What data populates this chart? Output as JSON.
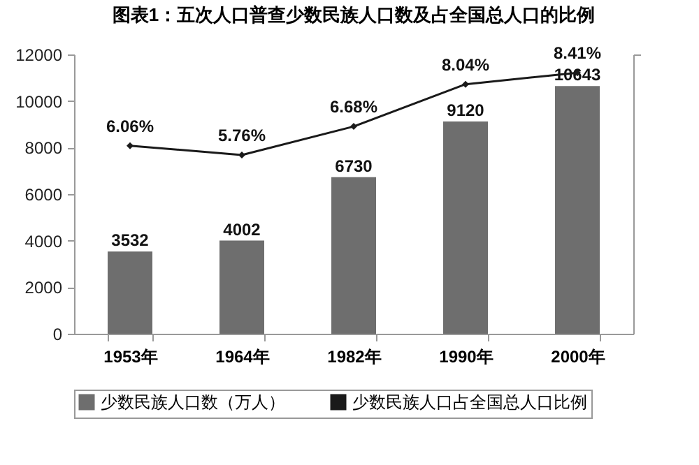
{
  "chart_data": {
    "type": "bar",
    "title": "图表1：五次人口普查少数民族人口数及占全国总人口的比例",
    "categories": [
      "1953年",
      "1964年",
      "1982年",
      "1990年",
      "2000年"
    ],
    "series": [
      {
        "name": "少数民族人口数（万人）",
        "color": "#6e6e6e",
        "values": [
          3532,
          4002,
          6730,
          9120,
          10643
        ],
        "value_labels": [
          "3532",
          "4002",
          "6730",
          "9120",
          "10643"
        ]
      },
      {
        "name": "少数民族人口占全国总人口比例",
        "type": "line",
        "axis": "y2",
        "color": "#1a1a1a",
        "values": [
          6.06,
          5.76,
          6.68,
          8.04,
          8.41
        ],
        "value_labels": [
          "6.06%",
          "5.76%",
          "6.68%",
          "8.04%",
          "8.41%"
        ]
      }
    ],
    "ylim": [
      0,
      12000
    ],
    "yticks": [
      0,
      2000,
      4000,
      6000,
      8000,
      10000,
      12000
    ],
    "y2lim": [
      0,
      9
    ],
    "tick_labels": "xy",
    "marker": "diamond",
    "line_style": "solid",
    "legend": "bottom",
    "grid": false
  }
}
